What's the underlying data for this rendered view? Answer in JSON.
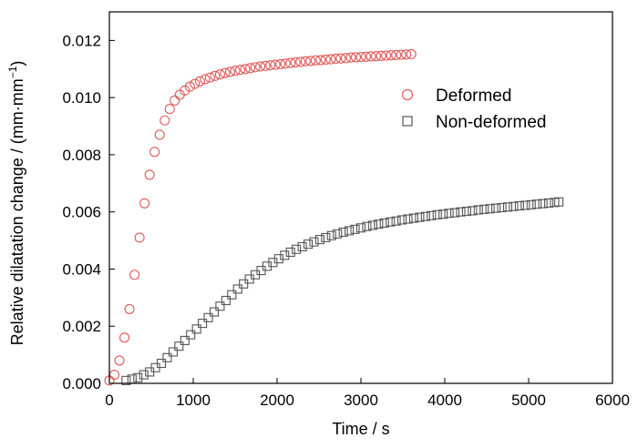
{
  "chart_data": {
    "type": "scatter",
    "xlabel": "Time / s",
    "ylabel": "Relative dilatation change / (mm·mm",
    "ylabel_superscript": "−1",
    "ylabel_close": ")",
    "xlim": [
      0,
      6000
    ],
    "ylim": [
      0,
      0.013
    ],
    "x_ticks": [
      "0",
      "1000",
      "2000",
      "3000",
      "4000",
      "5000",
      "6000"
    ],
    "y_ticks": [
      "0.000",
      "0.002",
      "0.004",
      "0.006",
      "0.008",
      "0.010",
      "0.012"
    ],
    "grid": false,
    "legend_position": "top-right",
    "series": [
      {
        "name": "Deformed",
        "marker": "circle",
        "color": "#e05a5a",
        "x": [
          0,
          60,
          120,
          180,
          240,
          300,
          360,
          420,
          480,
          540,
          600,
          660,
          720,
          780,
          840,
          900,
          960,
          1020,
          1080,
          1140,
          1200,
          1260,
          1320,
          1380,
          1440,
          1500,
          1560,
          1620,
          1680,
          1740,
          1800,
          1860,
          1920,
          1980,
          2040,
          2100,
          2160,
          2220,
          2280,
          2340,
          2400,
          2460,
          2520,
          2580,
          2640,
          2700,
          2760,
          2820,
          2880,
          2940,
          3000,
          3060,
          3120,
          3180,
          3240,
          3300,
          3360,
          3420,
          3480,
          3540,
          3600
        ],
        "y": [
          0.0001,
          0.0003,
          0.0008,
          0.0016,
          0.0026,
          0.0038,
          0.0051,
          0.0063,
          0.0073,
          0.0081,
          0.0087,
          0.0092,
          0.0096,
          0.0099,
          0.0101,
          0.01025,
          0.01038,
          0.01048,
          0.01057,
          0.01064,
          0.0107,
          0.01076,
          0.01081,
          0.01086,
          0.0109,
          0.01094,
          0.01097,
          0.011,
          0.01103,
          0.01106,
          0.01109,
          0.01111,
          0.01113,
          0.01115,
          0.01117,
          0.01119,
          0.01121,
          0.01123,
          0.01125,
          0.01127,
          0.01128,
          0.0113,
          0.01131,
          0.01133,
          0.01134,
          0.01136,
          0.01137,
          0.01138,
          0.0114,
          0.01141,
          0.01142,
          0.01143,
          0.01144,
          0.01145,
          0.01146,
          0.01147,
          0.01148,
          0.01149,
          0.0115,
          0.01151,
          0.01152
        ]
      },
      {
        "name": "Non-deformed",
        "marker": "square",
        "color": "#555555",
        "x": [
          200,
          270,
          340,
          410,
          480,
          550,
          620,
          690,
          760,
          830,
          900,
          970,
          1040,
          1110,
          1180,
          1250,
          1320,
          1390,
          1460,
          1530,
          1600,
          1670,
          1740,
          1810,
          1880,
          1950,
          2020,
          2090,
          2160,
          2230,
          2300,
          2370,
          2440,
          2510,
          2580,
          2650,
          2720,
          2790,
          2860,
          2930,
          3000,
          3070,
          3140,
          3210,
          3280,
          3350,
          3420,
          3490,
          3560,
          3630,
          3700,
          3770,
          3840,
          3910,
          3980,
          4050,
          4120,
          4190,
          4260,
          4330,
          4400,
          4470,
          4540,
          4610,
          4680,
          4750,
          4820,
          4890,
          4960,
          5030,
          5100,
          5170,
          5240,
          5310,
          5360
        ],
        "y": [
          0.0001,
          0.00015,
          0.0002,
          0.0003,
          0.0004,
          0.00055,
          0.0007,
          0.0009,
          0.0011,
          0.0013,
          0.0015,
          0.0017,
          0.0019,
          0.0021,
          0.0023,
          0.0025,
          0.0027,
          0.0029,
          0.0031,
          0.0033,
          0.00348,
          0.00365,
          0.0038,
          0.00395,
          0.0041,
          0.00423,
          0.00436,
          0.00448,
          0.00459,
          0.00469,
          0.00478,
          0.00487,
          0.00495,
          0.00503,
          0.0051,
          0.00517,
          0.00523,
          0.00529,
          0.00534,
          0.00539,
          0.00544,
          0.00549,
          0.00553,
          0.00557,
          0.00561,
          0.00565,
          0.00568,
          0.00572,
          0.00575,
          0.00578,
          0.00581,
          0.00584,
          0.00587,
          0.0059,
          0.00592,
          0.00595,
          0.00597,
          0.006,
          0.00602,
          0.00604,
          0.00607,
          0.00609,
          0.00611,
          0.00613,
          0.00615,
          0.00617,
          0.00619,
          0.00621,
          0.00623,
          0.00625,
          0.00627,
          0.00629,
          0.00631,
          0.00633,
          0.00635
        ]
      }
    ]
  }
}
